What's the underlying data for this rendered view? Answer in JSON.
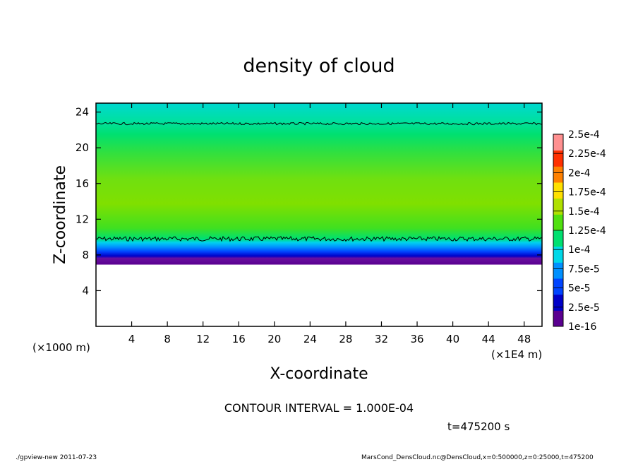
{
  "chart_data": {
    "type": "heatmap",
    "title": "density of cloud",
    "xlabel": "X-coordinate",
    "ylabel": "Z-coordinate",
    "x_unit_left": "(×1000 m)",
    "x_unit_right": "(×1E4 m)",
    "xlim": [
      0,
      50
    ],
    "ylim": [
      0,
      25
    ],
    "x_ticks": [
      4,
      8,
      12,
      16,
      20,
      24,
      28,
      32,
      36,
      40,
      44,
      48
    ],
    "y_ticks": [
      4,
      8,
      12,
      16,
      20,
      24
    ],
    "contour_interval": "CONTOUR INTERVAL = 1.000E-04",
    "time_label": "t=475200 s",
    "colorbar": {
      "labels": [
        "1e-16",
        "2.5e-5",
        "5e-5",
        "7.5e-5",
        "1e-4",
        "1.25e-4",
        "1.5e-4",
        "1.75e-4",
        "2e-4",
        "2.25e-4",
        "2.5e-4"
      ],
      "colors": [
        "#5a0090",
        "#0000c8",
        "#0044ff",
        "#0090ff",
        "#00d8e8",
        "#00e070",
        "#50e010",
        "#b0e000",
        "#ffe000",
        "#ff8000",
        "#ff3000",
        "#ff9090"
      ]
    },
    "layers": [
      {
        "z_range": [
          0,
          7
        ],
        "value": "none"
      },
      {
        "z_range": [
          7,
          8
        ],
        "value": "1e-16 to 2.5e-5"
      },
      {
        "z_range": [
          8,
          9
        ],
        "value": "2.5e-5 to 7.5e-5"
      },
      {
        "z_range": [
          9,
          10
        ],
        "value": "7.5e-5 to 1e-4"
      },
      {
        "z_range": [
          10,
          22
        ],
        "value": "1.25e-4 to 1.75e-4"
      },
      {
        "z_range": [
          22,
          25
        ],
        "value": "7.5e-5 to 1.25e-4"
      }
    ],
    "contour_levels_z": [
      9.8,
      22.7
    ],
    "grid": false
  },
  "footer": {
    "left": "./gpview-new   2011-07-23",
    "right": "MarsCond_DensCloud.nc@DensCloud,x=0:500000,z=0:25000,t=475200"
  }
}
